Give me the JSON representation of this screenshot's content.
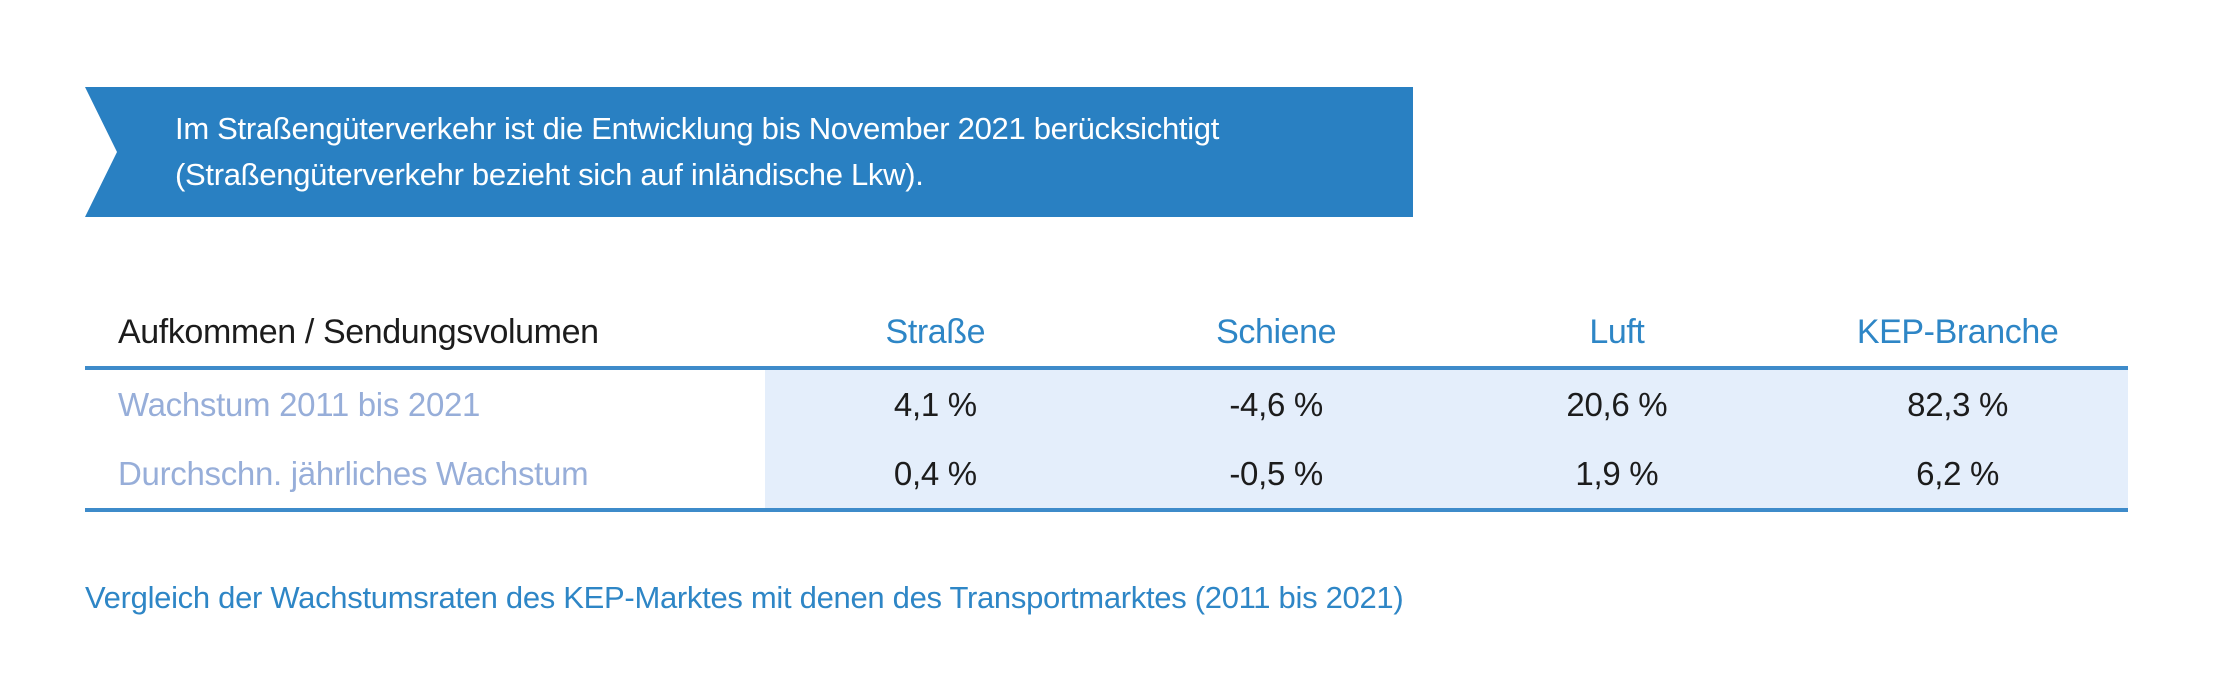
{
  "banner": {
    "lines": [
      "Im Straßengüterverkehr ist die Entwicklung bis November 2021 berücksichtigt",
      "(Straßengüterverkehr bezieht sich auf inländische Lkw)."
    ],
    "bg_color": "#2980c2",
    "text_color": "#ffffff"
  },
  "table": {
    "header_label": "Aufkommen / Sendungsvolumen",
    "columns": [
      "Straße",
      "Schiene",
      "Luft",
      "KEP-Branche"
    ],
    "rows": [
      {
        "label": "Wachstum 2011 bis 2021",
        "values": [
          "4,1 %",
          "-4,6 %",
          "20,6 %",
          "82,3 %"
        ]
      },
      {
        "label": "Durchschn. jährliches Wachstum",
        "values": [
          "0,4 %",
          "-0,5 %",
          "1,9 %",
          "6,2 %"
        ]
      }
    ],
    "colors": {
      "header_text": "#2e86c6",
      "rule": "#3e8bca",
      "value_panel_bg": "#e4eefb",
      "row_label_text": "#97aed9",
      "value_text": "#1c1c1c"
    }
  },
  "caption": {
    "text": "Vergleich der Wachstumsraten des KEP-Marktes mit denen des Transportmarktes (2011 bis 2021)",
    "color": "#2e86c6"
  },
  "chart_data": {
    "type": "table",
    "title": "Vergleich der Wachstumsraten des KEP-Marktes mit denen des Transportmarktes (2011 bis 2021)",
    "note": "Im Straßengüterverkehr ist die Entwicklung bis November 2021 berücksichtigt (Straßengüterverkehr bezieht sich auf inländische Lkw).",
    "columns": [
      "Aufkommen / Sendungsvolumen",
      "Straße",
      "Schiene",
      "Luft",
      "KEP-Branche"
    ],
    "rows": [
      [
        "Wachstum 2011 bis 2021",
        "4,1 %",
        "-4,6 %",
        "20,6 %",
        "82,3 %"
      ],
      [
        "Durchschn. jährliches Wachstum",
        "0,4 %",
        "-0,5 %",
        "1,9 %",
        "6,2 %"
      ]
    ],
    "values_numeric_percent": {
      "Wachstum 2011 bis 2021": {
        "Straße": 4.1,
        "Schiene": -4.6,
        "Luft": 20.6,
        "KEP-Branche": 82.3
      },
      "Durchschn. jährliches Wachstum": {
        "Straße": 0.4,
        "Schiene": -0.5,
        "Luft": 1.9,
        "KEP-Branche": 6.2
      }
    }
  }
}
